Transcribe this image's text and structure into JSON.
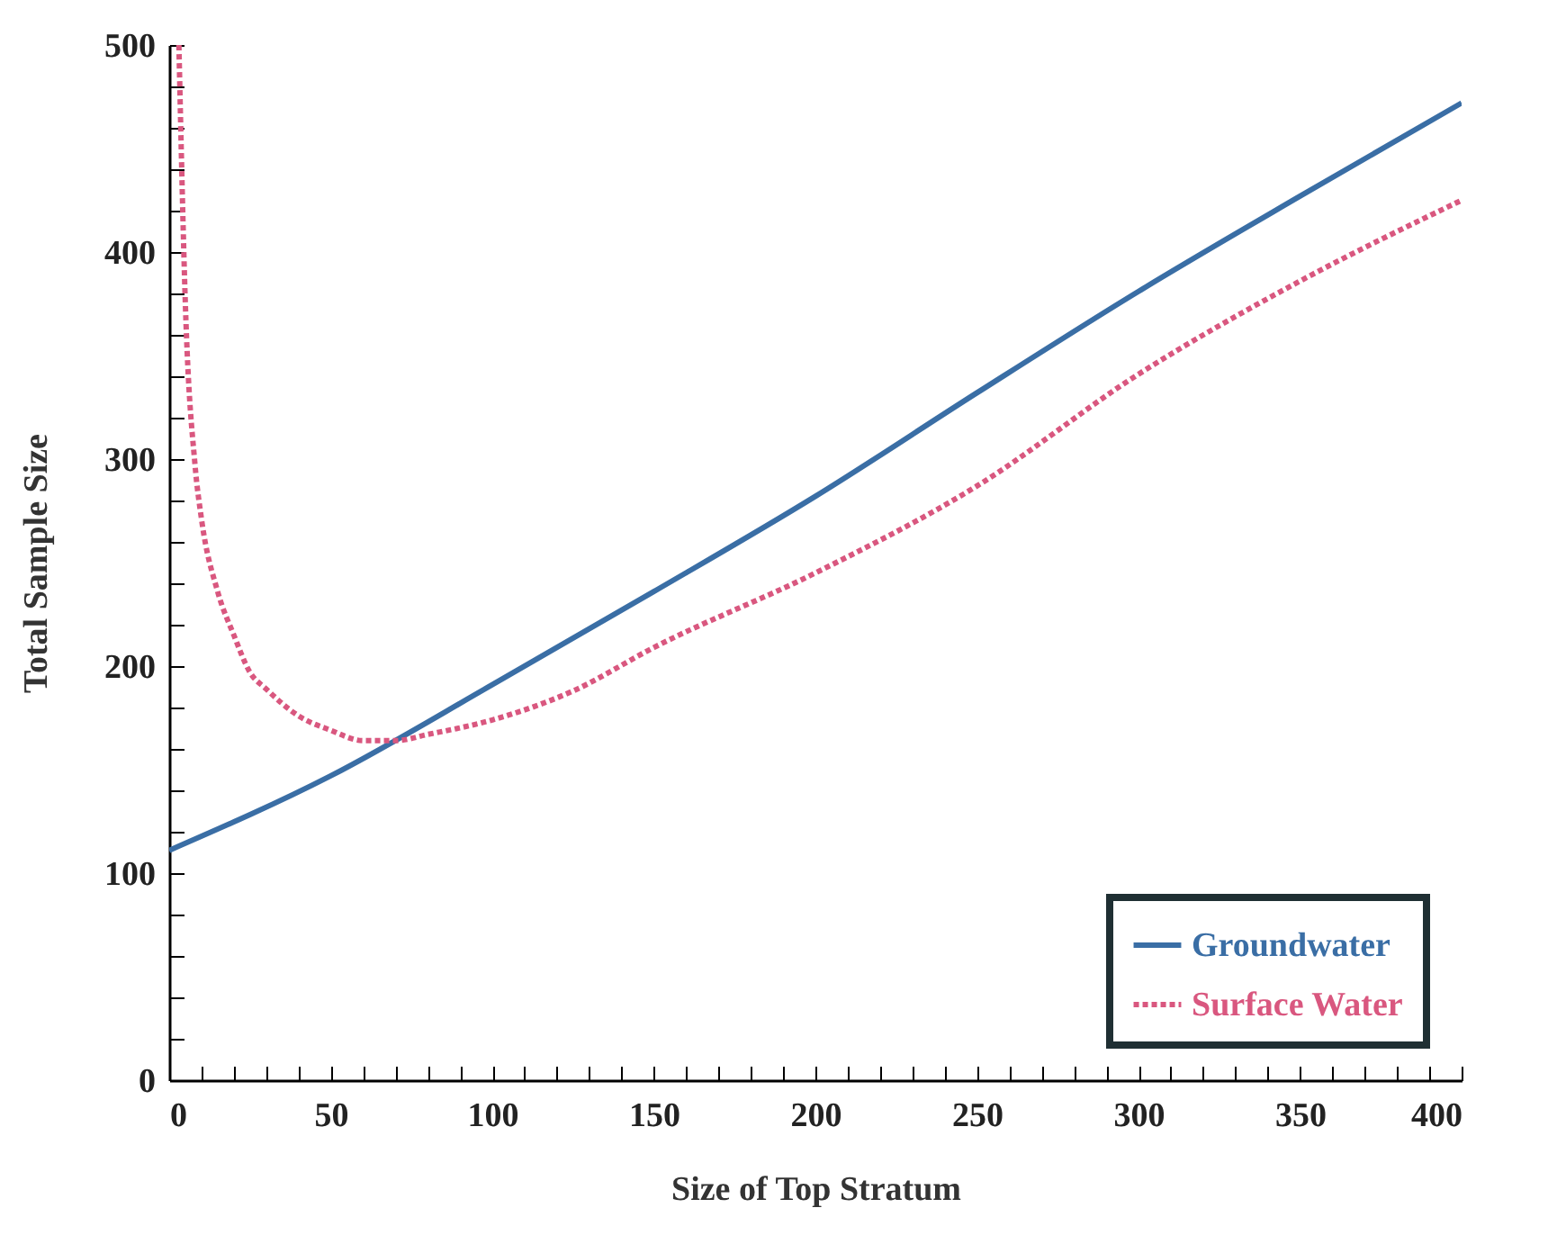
{
  "chart_data": {
    "type": "line",
    "xlabel": "Size of Top Stratum",
    "ylabel": "Total Sample Size",
    "xlim": [
      0,
      400
    ],
    "ylim": [
      0,
      500
    ],
    "xticks": [
      0,
      {
        "value": 10,
        "label": null
      },
      {
        "value": 20,
        "label": null
      },
      {
        "value": 30,
        "label": null
      },
      {
        "value": 40,
        "label": null
      },
      50,
      {
        "value": 60,
        "label": null
      },
      {
        "value": 70,
        "label": null
      },
      {
        "value": 80,
        "label": null
      },
      {
        "value": 90,
        "label": null
      },
      100,
      {
        "value": 110,
        "label": null
      },
      {
        "value": 120,
        "label": null
      },
      {
        "value": 130,
        "label": null
      },
      {
        "value": 140,
        "label": null
      },
      150,
      {
        "value": 160,
        "label": null
      },
      {
        "value": 170,
        "label": null
      },
      {
        "value": 180,
        "label": null
      },
      {
        "value": 190,
        "label": null
      },
      200,
      {
        "value": 210,
        "label": null
      },
      {
        "value": 220,
        "label": null
      },
      {
        "value": 230,
        "label": null
      },
      {
        "value": 240,
        "label": null
      },
      250,
      {
        "value": 260,
        "label": null
      },
      {
        "value": 270,
        "label": null
      },
      {
        "value": 280,
        "label": null
      },
      {
        "value": 290,
        "label": null
      },
      300,
      {
        "value": 310,
        "label": null
      },
      {
        "value": 320,
        "label": null
      },
      {
        "value": 330,
        "label": null
      },
      {
        "value": 340,
        "label": null
      },
      350,
      {
        "value": 360,
        "label": null
      },
      {
        "value": 370,
        "label": null
      },
      {
        "value": 380,
        "label": null
      },
      {
        "value": 390,
        "label": null
      },
      400
    ],
    "yticks": [
      0,
      {
        "value": 20,
        "label": null
      },
      {
        "value": 40,
        "label": null
      },
      {
        "value": 60,
        "label": null
      },
      {
        "value": 80,
        "label": null
      },
      100,
      {
        "value": 120,
        "label": null
      },
      {
        "value": 140,
        "label": null
      },
      {
        "value": 160,
        "label": null
      },
      {
        "value": 180,
        "label": null
      },
      200,
      {
        "value": 220,
        "label": null
      },
      {
        "value": 240,
        "label": null
      },
      {
        "value": 260,
        "label": null
      },
      {
        "value": 280,
        "label": null
      },
      300,
      {
        "value": 320,
        "label": null
      },
      {
        "value": 340,
        "label": null
      },
      {
        "value": 360,
        "label": null
      },
      {
        "value": 380,
        "label": null
      },
      400,
      {
        "value": 420,
        "label": null
      },
      {
        "value": 440,
        "label": null
      },
      {
        "value": 460,
        "label": null
      },
      {
        "value": 480,
        "label": null
      },
      500
    ],
    "grid": false,
    "legend": "bottom right",
    "marker": "none",
    "series": [
      {
        "name": "Groundwater",
        "color": "#3a6ea5",
        "line_style": "solid",
        "x": [
          0,
          50,
          100,
          150,
          200,
          250,
          300,
          350,
          400
        ],
        "values": [
          111,
          147,
          191,
          236,
          282,
          332,
          381,
          427,
          472
        ]
      },
      {
        "name": "Surface Water",
        "color": "#d9577f",
        "line_style": "dotted",
        "x": [
          3,
          5,
          8,
          10,
          15,
          20,
          25,
          30,
          40,
          50,
          60,
          70,
          80,
          100,
          125,
          150,
          200,
          250,
          300,
          350,
          400
        ],
        "values": [
          500,
          375,
          297,
          271,
          236,
          215,
          197,
          189,
          176,
          169,
          164,
          164,
          167,
          174,
          188,
          209,
          245,
          287,
          341,
          386,
          425
        ]
      }
    ]
  }
}
